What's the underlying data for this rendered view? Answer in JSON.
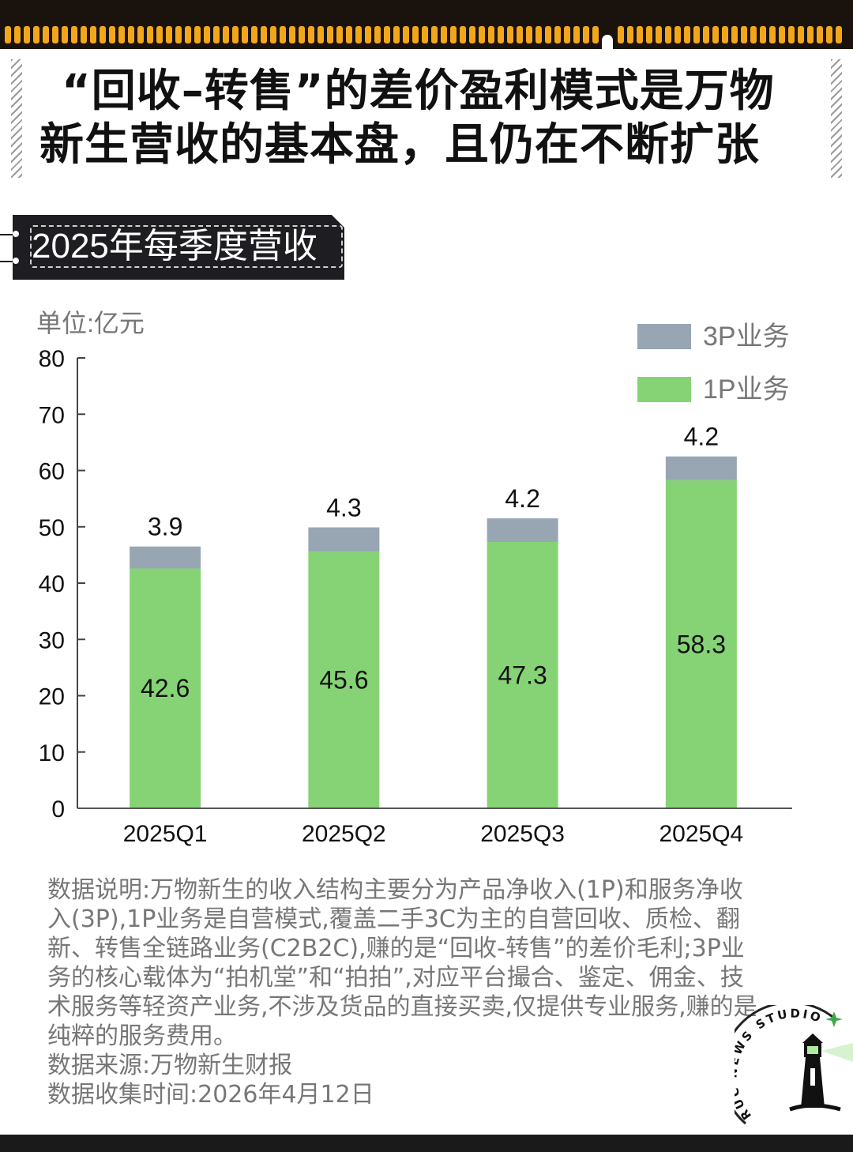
{
  "title": {
    "line1": "“回收–转售”的差价盈利模式是万物",
    "line2": "新生营收的基本盘，且仍在不断扩张"
  },
  "subtitle": "2025年每季度营收",
  "colors": {
    "one_p": "#86d376",
    "three_p": "#98a6b4",
    "band": "#1a120c",
    "sprocket": "#f2a71b"
  },
  "chart_data": {
    "type": "bar",
    "stacked": true,
    "unit_label": "单位:亿元",
    "categories": [
      "2025Q1",
      "2025Q2",
      "2025Q3",
      "2025Q4"
    ],
    "series": [
      {
        "name": "1P业务",
        "values": [
          42.6,
          45.6,
          47.3,
          58.3
        ]
      },
      {
        "name": "3P业务",
        "values": [
          3.9,
          4.3,
          4.2,
          4.2
        ]
      }
    ],
    "ylim": [
      0,
      80
    ],
    "yticks": [
      0,
      10,
      20,
      30,
      40,
      50,
      60,
      70,
      80
    ],
    "grid": false,
    "legend_position": "top-right"
  },
  "note": {
    "description": "数据说明:万物新生的收入结构主要分为产品净收入(1P)和服务净收入(3P),1P业务是自营模式,覆盖二手3C为主的自营回收、质检、翻新、转售全链路业务(C2B2C),赚的是“回收-转售”的差价毛利;3P业务的核心载体为“拍机堂”和“拍拍”,对应平台撮合、鉴定、佣金、技术服务等轻资产业务,不涉及货品的直接买卖,仅提供专业服务,赚的是纯粹的服务费用。",
    "source": "数据来源:万物新生财报",
    "date": "数据收集时间:2026年4月12日"
  },
  "logo": {
    "text": "RUC NEWS STUDIO",
    "icon": "lighthouse-icon"
  }
}
